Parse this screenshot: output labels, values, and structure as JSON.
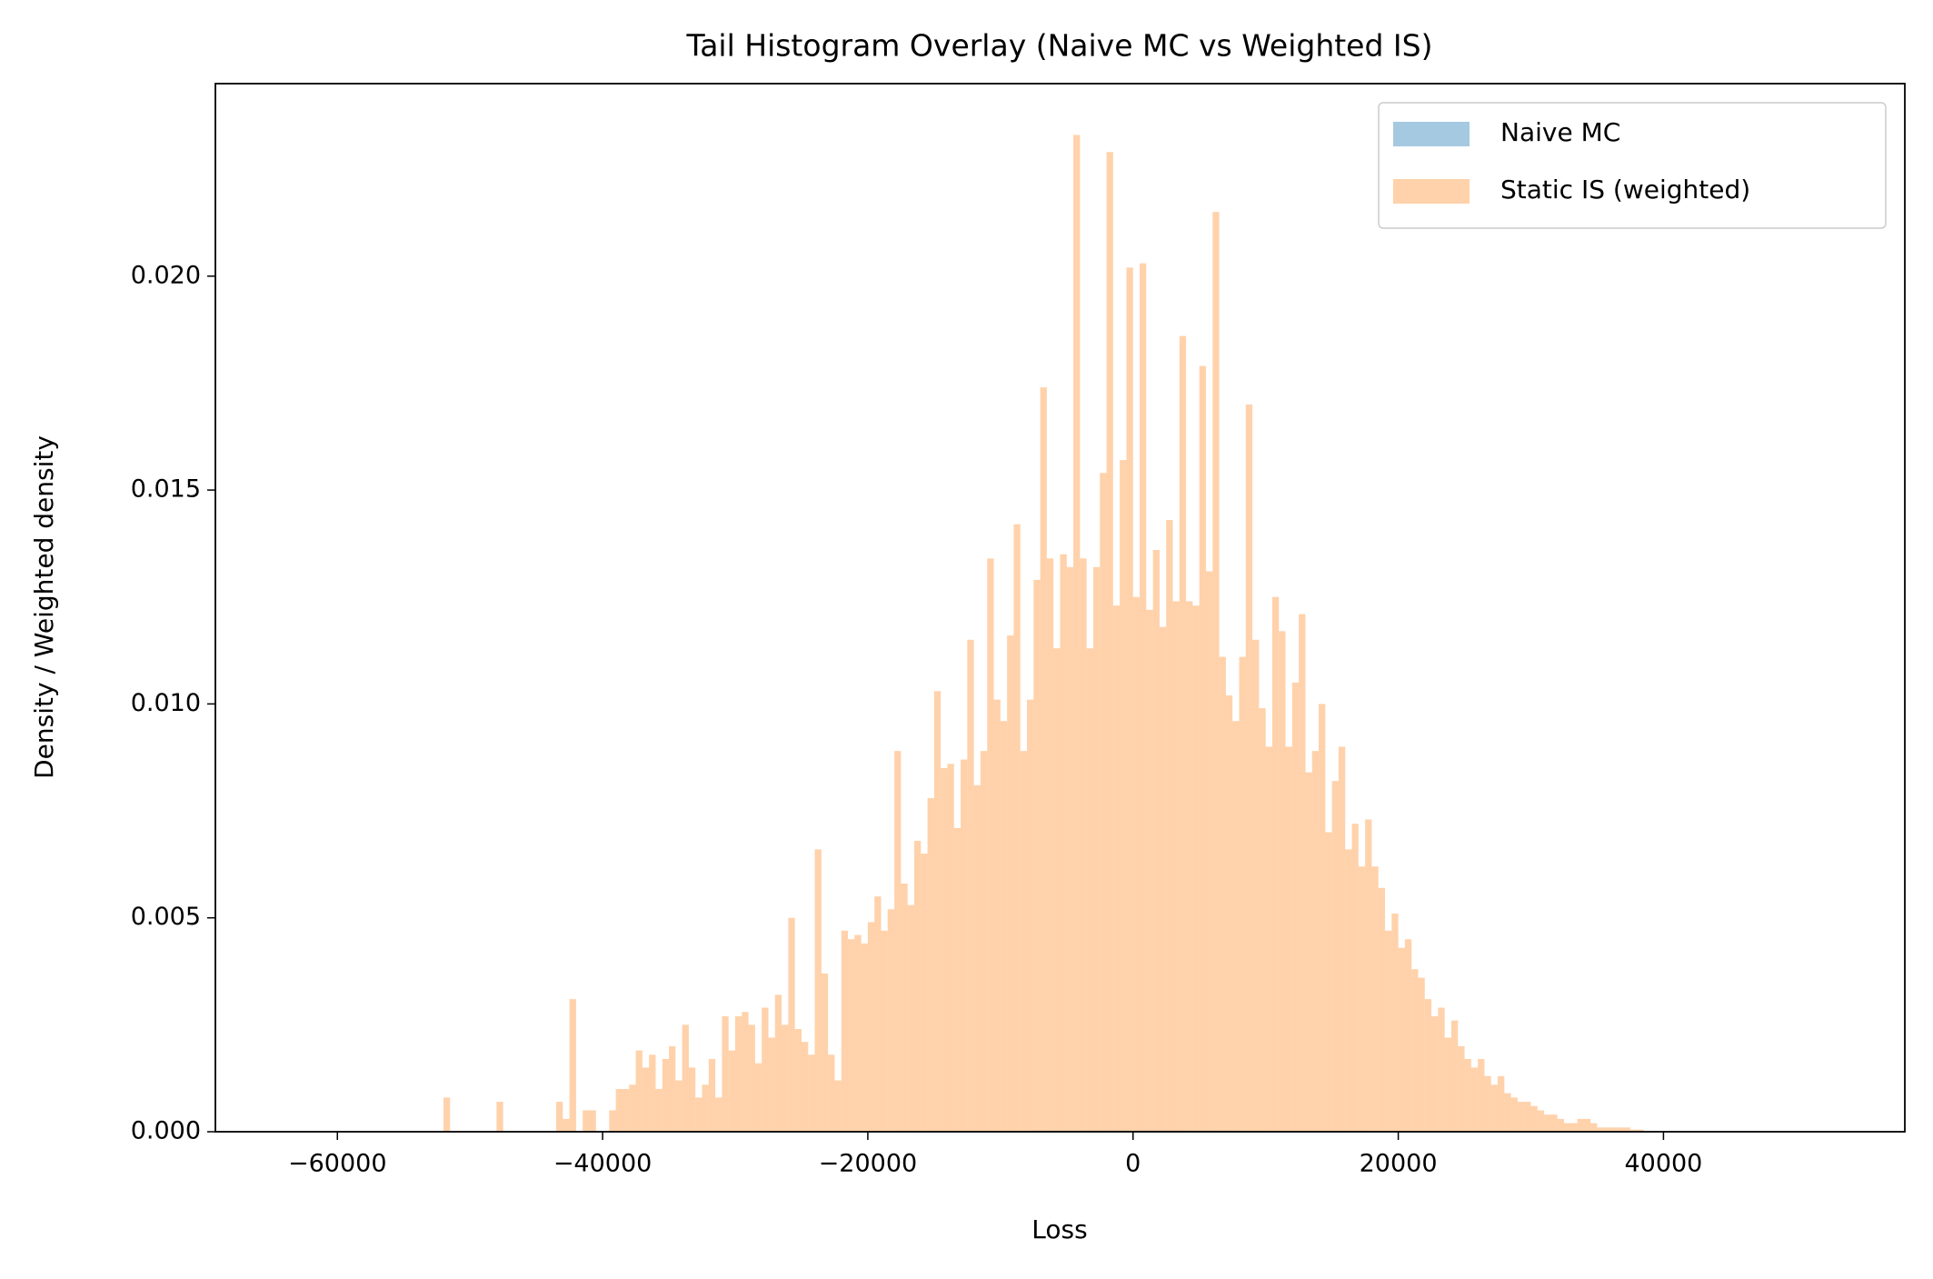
{
  "chart_data": {
    "type": "histogram",
    "title": "Tail Histogram Overlay (Naive MC vs Weighted IS)",
    "x_label": "Loss",
    "y_label": "Density / Weighted density",
    "xlim": [
      -69200,
      58200
    ],
    "ylim": [
      0,
      0.0245
    ],
    "xticks": [
      {
        "value": -60000,
        "label": "−60000"
      },
      {
        "value": -40000,
        "label": "−40000"
      },
      {
        "value": -20000,
        "label": "−20000"
      },
      0,
      20000,
      40000
    ],
    "yticks": [
      {
        "value": 0,
        "label": "0.000"
      },
      {
        "value": 0.005,
        "label": "0.005"
      },
      {
        "value": 0.01,
        "label": "0.010"
      },
      {
        "value": 0.015,
        "label": "0.015"
      },
      {
        "value": 0.02,
        "label": "0.020"
      }
    ],
    "legend": "upper right",
    "bins": [
      -62000,
      -61500,
      -61000,
      -60500,
      -60000,
      -59500,
      -59000,
      -58500,
      -58000,
      -57500,
      -57000,
      -56500,
      -56000,
      -55500,
      -55000,
      -54500,
      -54000,
      -53500,
      -53000,
      -52500,
      -52000,
      -51500,
      -51000,
      -50500,
      -50000,
      -49500,
      -49000,
      -48500,
      -48000,
      -47500,
      -47000,
      -46500,
      -46000,
      -45500,
      -45000,
      -44500,
      -44000,
      -43500,
      -43000,
      -42500,
      -42000,
      -41500,
      -41000,
      -40500,
      -40000,
      -39500,
      -39000,
      -38500,
      -38000,
      -37500,
      -37000,
      -36500,
      -36000,
      -35500,
      -35000,
      -34500,
      -34000,
      -33500,
      -33000,
      -32500,
      -32000,
      -31500,
      -31000,
      -30500,
      -30000,
      -29500,
      -29000,
      -28500,
      -28000,
      -27500,
      -27000,
      -26500,
      -26000,
      -25500,
      -25000,
      -24500,
      -24000,
      -23500,
      -23000,
      -22500,
      -22000,
      -21500,
      -21000,
      -20500,
      -20000,
      -19500,
      -19000,
      -18500,
      -18000,
      -17500,
      -17000,
      -16500,
      -16000,
      -15500,
      -15000,
      -14500,
      -14000,
      -13500,
      -13000,
      -12500,
      -12000,
      -11500,
      -11000,
      -10500,
      -10000,
      -9500,
      -9000,
      -8500,
      -8000,
      -7500,
      -7000,
      -6500,
      -6000,
      -5500,
      -5000,
      -4500,
      -4000,
      -3500,
      -3000,
      -2500,
      -2000,
      -1500,
      -1000,
      -500,
      0,
      500,
      1000,
      1500,
      2000,
      2500,
      3000,
      3500,
      4000,
      4500,
      5000,
      5500,
      6000,
      6500,
      7000,
      7500,
      8000,
      8500,
      9000,
      9500,
      10000,
      10500,
      11000,
      11500,
      12000,
      12500,
      13000,
      13500,
      14000,
      14500,
      15000,
      15500,
      16000,
      16500,
      17000,
      17500,
      18000,
      18500,
      19000,
      19500,
      20000,
      20500,
      21000,
      21500,
      22000,
      22500,
      23000,
      23500,
      24000,
      24500,
      25000,
      25500,
      26000,
      26500,
      27000,
      27500,
      28000,
      28500,
      29000,
      29500,
      30000,
      30500,
      31000,
      31500,
      32000,
      32500,
      33000,
      33500,
      34000,
      34500,
      35000,
      35500,
      36000,
      36500,
      37000,
      37500,
      38000,
      38500,
      39000,
      39500,
      40000,
      40500,
      41000,
      41500,
      42000,
      42500,
      43000,
      43500,
      44000,
      44500,
      45000,
      45500,
      46000,
      46500,
      47000,
      47500,
      48000,
      48500,
      49000,
      49500,
      50000,
      50500,
      51000,
      51500,
      52000
    ],
    "series": [
      {
        "name": "Naive MC",
        "color": "#1f77b4",
        "alpha": 0.4,
        "values": [
          1e-08,
          1e-08,
          1e-08,
          1e-08,
          1e-08,
          1e-08,
          1e-08,
          1e-08,
          1e-08,
          1e-08,
          1e-08,
          1e-08,
          1e-08,
          1e-08,
          1e-08,
          1e-08,
          2e-08,
          2e-08,
          2e-08,
          2e-08,
          4e-08,
          4e-08,
          4e-08,
          4e-08,
          6e-08,
          6e-08,
          6e-08,
          6e-08,
          1e-07,
          1e-07,
          1e-07,
          1e-07,
          1.6e-07,
          1.6e-07,
          1.6e-07,
          1.6e-07,
          2.4e-07,
          2.4e-07,
          2.4e-07,
          2.4e-07,
          3.6e-07,
          3.6e-07,
          3.6e-07,
          3.6e-07,
          5.5e-07,
          5.5e-07,
          5.5e-07,
          5.5e-07,
          8e-07,
          8e-07,
          8e-07,
          8e-07,
          1.2e-06,
          1.2e-06,
          1.2e-06,
          1.2e-06,
          1.7e-06,
          1.7e-06,
          1.7e-06,
          1.7e-06,
          2.4e-06,
          2.4e-06,
          2.4e-06,
          2.4e-06,
          3.3e-06,
          3.3e-06,
          3.3e-06,
          3.3e-06,
          4.4e-06,
          4.4e-06,
          4.4e-06,
          4.4e-06,
          5.7e-06,
          5.7e-06,
          5.7e-06,
          5.7e-06,
          7.3e-06,
          7.3e-06,
          7.3e-06,
          7.3e-06,
          9.1e-06,
          9.1e-06,
          9.1e-06,
          9.1e-06,
          1.11e-05,
          1.11e-05,
          1.11e-05,
          1.11e-05,
          1.34e-05,
          1.34e-05,
          1.34e-05,
          1.34e-05,
          1.58e-05,
          1.58e-05,
          1.58e-05,
          1.58e-05,
          1.82e-05,
          1.82e-05,
          1.82e-05,
          1.82e-05,
          2.06e-05,
          2.06e-05,
          2.06e-05,
          2.06e-05,
          2.28e-05,
          2.28e-05,
          2.28e-05,
          2.28e-05,
          2.47e-05,
          2.47e-05,
          2.47e-05,
          2.47e-05,
          2.63e-05,
          2.63e-05,
          2.63e-05,
          2.63e-05,
          2.74e-05,
          2.74e-05,
          2.74e-05,
          2.74e-05,
          2.79e-05,
          2.79e-05,
          2.79e-05,
          2.79e-05,
          2.79e-05,
          2.79e-05,
          2.79e-05,
          2.79e-05,
          2.74e-05,
          2.74e-05,
          2.74e-05,
          2.74e-05,
          2.63e-05,
          2.63e-05,
          2.63e-05,
          2.63e-05,
          2.47e-05,
          2.47e-05,
          2.47e-05,
          2.47e-05,
          2.28e-05,
          2.28e-05,
          2.28e-05,
          2.28e-05,
          2.06e-05,
          2.06e-05,
          2.06e-05,
          2.06e-05,
          1.82e-05,
          1.82e-05,
          1.82e-05,
          1.82e-05,
          1.58e-05,
          1.58e-05,
          1.58e-05,
          1.58e-05,
          1.34e-05,
          1.34e-05,
          1.34e-05,
          1.34e-05,
          1.11e-05,
          1.11e-05,
          1.11e-05,
          1.11e-05,
          9.1e-06,
          9.1e-06,
          9.1e-06,
          9.1e-06,
          7.3e-06,
          7.3e-06,
          7.3e-06,
          7.3e-06,
          5.7e-06,
          5.7e-06,
          5.7e-06,
          5.7e-06,
          4.4e-06,
          4.4e-06,
          4.4e-06,
          4.4e-06,
          3.3e-06,
          3.3e-06,
          3.3e-06,
          3.3e-06,
          2.4e-06,
          2.4e-06,
          2.4e-06,
          2.4e-06,
          1.7e-06,
          1.7e-06,
          1.7e-06,
          1.7e-06,
          1.2e-06,
          1.2e-06,
          1.2e-06,
          1.2e-06,
          8e-07,
          8e-07,
          8e-07,
          8e-07,
          5.5e-07,
          5.5e-07,
          5.5e-07,
          5.5e-07,
          3.6e-07,
          3.6e-07,
          3.6e-07,
          3.6e-07,
          2.4e-07,
          2.4e-07,
          2.4e-07,
          2.4e-07,
          1.6e-07,
          1.6e-07,
          1.6e-07,
          1.6e-07,
          1e-07,
          1e-07,
          1e-07,
          1e-07,
          6e-08,
          6e-08,
          6e-08,
          6e-08,
          4e-08,
          4e-08,
          4e-08,
          4e-08
        ]
      },
      {
        "name": "Static IS (weighted)",
        "color": "#ff7f0e",
        "alpha": 0.35,
        "values": [
          0,
          0,
          0,
          0,
          0,
          0,
          0,
          0,
          0,
          0,
          0,
          0,
          0,
          0,
          0,
          0,
          0,
          0,
          0,
          0,
          0.0008,
          0,
          0,
          0,
          0,
          0,
          0,
          0,
          0.0007,
          0,
          0,
          0,
          0,
          0,
          0,
          0,
          0,
          0.0007,
          0.0003,
          0.0031,
          0,
          0.0005,
          0.0005,
          0,
          0,
          0.0005,
          0.001,
          0.001,
          0.0011,
          0.0019,
          0.0015,
          0.0018,
          0.001,
          0.0017,
          0.002,
          0.0012,
          0.0025,
          0.0015,
          0.0008,
          0.0011,
          0.0017,
          0.0008,
          0.0027,
          0.0019,
          0.0027,
          0.0028,
          0.0025,
          0.0016,
          0.0029,
          0.0022,
          0.0032,
          0.0025,
          0.005,
          0.0024,
          0.0021,
          0.0018,
          0.0066,
          0.0037,
          0.0018,
          0.0012,
          0.0047,
          0.0045,
          0.0046,
          0.0044,
          0.0049,
          0.0055,
          0.0047,
          0.0052,
          0.0089,
          0.0058,
          0.0053,
          0.0068,
          0.0065,
          0.0078,
          0.0103,
          0.0085,
          0.0086,
          0.0071,
          0.0087,
          0.0115,
          0.0081,
          0.0089,
          0.0134,
          0.0101,
          0.0096,
          0.0116,
          0.0142,
          0.0089,
          0.0101,
          0.0129,
          0.0174,
          0.0134,
          0.0113,
          0.0135,
          0.0132,
          0.0233,
          0.0134,
          0.0113,
          0.0132,
          0.0154,
          0.0229,
          0.0123,
          0.0157,
          0.0202,
          0.0125,
          0.0203,
          0.0122,
          0.0136,
          0.0118,
          0.0143,
          0.0124,
          0.0186,
          0.0124,
          0.0123,
          0.0179,
          0.0131,
          0.0215,
          0.0111,
          0.0102,
          0.0096,
          0.0111,
          0.017,
          0.0115,
          0.0099,
          0.009,
          0.0125,
          0.0117,
          0.009,
          0.0105,
          0.0121,
          0.0084,
          0.0089,
          0.01,
          0.007,
          0.0082,
          0.009,
          0.0066,
          0.0072,
          0.0062,
          0.0073,
          0.0062,
          0.0057,
          0.0047,
          0.0051,
          0.0043,
          0.0045,
          0.0038,
          0.0036,
          0.0031,
          0.0027,
          0.0029,
          0.0022,
          0.0026,
          0.002,
          0.0017,
          0.0015,
          0.0017,
          0.0013,
          0.0011,
          0.0013,
          0.0009,
          0.0008,
          0.0007,
          0.0007,
          0.0006,
          0.0005,
          0.0004,
          0.0004,
          0.0003,
          0.0002,
          0.0002,
          0.0003,
          0.0003,
          0.0002,
          0.0001,
          0.0001,
          0.0001,
          0.0001,
          0.0001,
          5e-05,
          5e-05,
          0,
          0,
          0,
          0,
          0,
          0,
          0,
          0,
          0,
          0,
          0,
          0,
          0,
          0,
          0,
          0,
          0,
          0,
          0,
          0,
          0,
          0,
          0,
          0,
          0,
          0,
          0
        ]
      }
    ]
  }
}
